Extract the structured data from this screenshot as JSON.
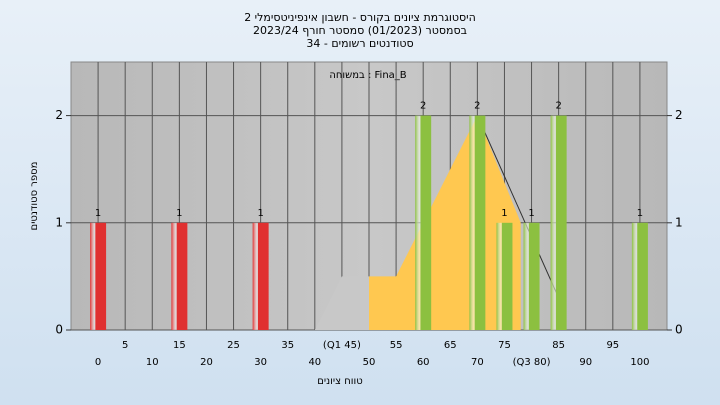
{
  "chart_data": {
    "type": "bar",
    "title": [
      "היסטוגרמת ציונים בקורס - חשבון אינפיניטסימלי 2",
      "בסמסטר  (01/2023)  סמסטר חורף  2023/24",
      "סטודנטים רשומים - 34"
    ],
    "subtitle": "במשוחה : Fina_B",
    "xlabel": "טווח ציונים",
    "ylabel": "מספר סטודנטים",
    "x": [
      0,
      15,
      30,
      60,
      70,
      75,
      80,
      85,
      100
    ],
    "values": [
      1,
      1,
      1,
      2,
      2,
      1,
      1,
      2,
      1
    ],
    "colors": [
      "#e03030",
      "#e03030",
      "#e03030",
      "#8cc040",
      "#8cc040",
      "#8cc040",
      "#8cc040",
      "#8cc040",
      "#8cc040"
    ],
    "areas": [
      {
        "color": "#c8c8c8",
        "x": [
          40,
          45,
          50
        ],
        "values": [
          0,
          0.5,
          0.5
        ]
      },
      {
        "color": "#ffc850",
        "x": [
          50,
          55,
          70,
          78
        ],
        "values": [
          0.5,
          0.5,
          2,
          1
        ]
      }
    ],
    "line": {
      "color": "#303030",
      "x": [
        70,
        85
      ],
      "values": [
        2,
        0.3
      ]
    },
    "xlim": [
      -5,
      105
    ],
    "xticks": [
      0,
      5,
      10,
      15,
      20,
      25,
      30,
      35,
      40,
      {
        "value": 45,
        "label": "(Q1 45)"
      },
      50,
      55,
      60,
      65,
      70,
      75,
      {
        "value": 80,
        "label": "(Q3 80)"
      },
      85,
      90,
      95,
      100
    ],
    "ylim": [
      0,
      2.5
    ],
    "yticks": [
      0,
      1,
      2
    ],
    "grid": true
  }
}
